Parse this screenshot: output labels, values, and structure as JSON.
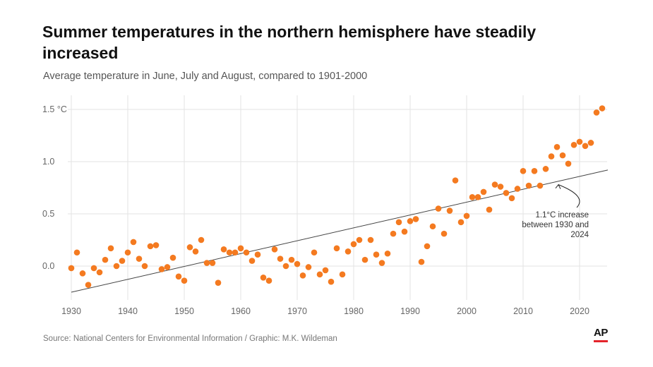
{
  "title": "Summer temperatures in the northern hemisphere have steadily increased",
  "subtitle": "Average temperature in June, July and August, compared to 1901-2000",
  "source": "Source: National Centers for Environmental Information / Graphic: M.K. Wildeman",
  "logo": "AP",
  "colors": {
    "points": "#f47a20",
    "trend": "#444444",
    "grid": "#e3e3e3",
    "logo_bar": "#e4242b"
  },
  "chart_data": {
    "type": "scatter",
    "xlim": [
      1930,
      2025
    ],
    "ylim": [
      -0.3,
      1.6
    ],
    "grid": true,
    "x_ticks": [
      1930,
      1940,
      1950,
      1960,
      1970,
      1980,
      1990,
      2000,
      2010,
      2020
    ],
    "y_ticks": [
      {
        "value": 0.0,
        "label": "0.0"
      },
      {
        "value": 0.5,
        "label": "0.5"
      },
      {
        "value": 1.0,
        "label": "1.0"
      },
      {
        "value": 1.5,
        "label": "1.5 °C"
      }
    ],
    "x": [
      1930,
      1931,
      1932,
      1933,
      1934,
      1935,
      1936,
      1937,
      1938,
      1939,
      1940,
      1941,
      1942,
      1943,
      1944,
      1945,
      1946,
      1947,
      1948,
      1949,
      1950,
      1951,
      1952,
      1953,
      1954,
      1955,
      1956,
      1957,
      1958,
      1959,
      1960,
      1961,
      1962,
      1963,
      1964,
      1965,
      1966,
      1967,
      1968,
      1969,
      1970,
      1971,
      1972,
      1973,
      1974,
      1975,
      1976,
      1977,
      1978,
      1979,
      1980,
      1981,
      1982,
      1983,
      1984,
      1985,
      1986,
      1987,
      1988,
      1989,
      1990,
      1991,
      1992,
      1993,
      1994,
      1995,
      1996,
      1997,
      1998,
      1999,
      2000,
      2001,
      2002,
      2003,
      2004,
      2005,
      2006,
      2007,
      2008,
      2009,
      2010,
      2011,
      2012,
      2013,
      2014,
      2015,
      2016,
      2017,
      2018,
      2019,
      2020,
      2021,
      2022,
      2023,
      2024
    ],
    "y": [
      -0.02,
      0.13,
      -0.07,
      -0.18,
      -0.02,
      -0.06,
      0.06,
      0.17,
      0.0,
      0.05,
      0.13,
      0.23,
      0.07,
      0.0,
      0.19,
      0.2,
      -0.03,
      -0.01,
      0.08,
      -0.1,
      -0.14,
      0.18,
      0.14,
      0.25,
      0.03,
      0.03,
      -0.16,
      0.16,
      0.13,
      0.13,
      0.17,
      0.13,
      0.05,
      0.11,
      -0.11,
      -0.14,
      0.16,
      0.07,
      0.0,
      0.06,
      0.02,
      -0.09,
      -0.01,
      0.13,
      -0.08,
      -0.04,
      -0.15,
      0.17,
      -0.08,
      0.14,
      0.21,
      0.25,
      0.06,
      0.25,
      0.11,
      0.03,
      0.12,
      0.31,
      0.42,
      0.33,
      0.43,
      0.45,
      0.04,
      0.19,
      0.38,
      0.55,
      0.31,
      0.53,
      0.82,
      0.42,
      0.48,
      0.66,
      0.66,
      0.71,
      0.54,
      0.78,
      0.76,
      0.7,
      0.65,
      0.74,
      0.91,
      0.77,
      0.91,
      0.77,
      0.93,
      1.05,
      1.14,
      1.06,
      0.98,
      1.16,
      1.19,
      1.15,
      1.18,
      1.47,
      1.51
    ],
    "trend": {
      "start": [
        1930,
        -0.25
      ],
      "end": [
        2025,
        0.92
      ]
    },
    "annotation": {
      "lines": [
        "1.1°C increase",
        "between 1930 and",
        "2024"
      ],
      "arrow_to": [
        2016,
        0.82
      ]
    }
  }
}
